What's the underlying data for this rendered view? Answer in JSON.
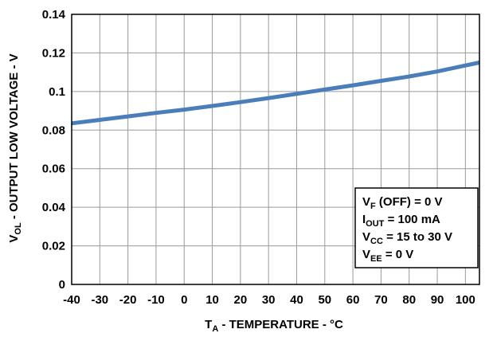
{
  "chart_data": {
    "type": "line",
    "xlabel": {
      "main": "T",
      "sub": "A",
      "rest": " - TEMPERATURE - °C"
    },
    "ylabel": {
      "main": "V",
      "sub": "OL",
      "rest": " - OUTPUT LOW VOLTAGE - V"
    },
    "xlim": [
      -40,
      105
    ],
    "ylim": [
      0,
      0.14
    ],
    "xticks": [
      -40,
      -30,
      -20,
      -10,
      0,
      10,
      20,
      30,
      40,
      50,
      60,
      70,
      80,
      90,
      100
    ],
    "xtick_labels": [
      "-40",
      "-30",
      "-20",
      "-10",
      "0",
      "10",
      "20",
      "30",
      "40",
      "50",
      "60",
      "70",
      "80",
      "90",
      "100"
    ],
    "yticks": [
      0,
      0.02,
      0.04,
      0.06,
      0.08,
      0.1,
      0.12,
      0.14
    ],
    "ytick_labels": [
      "0",
      "0.02",
      "0.04",
      "0.06",
      "0.08",
      "0.1",
      "0.12",
      "0.14"
    ],
    "grid": true,
    "line_color": "#4a7ebb",
    "series": [
      {
        "x": [
          -40,
          -30,
          -20,
          -10,
          0,
          10,
          20,
          30,
          40,
          50,
          60,
          70,
          80,
          90,
          100,
          105
        ],
        "y": [
          0.0835,
          0.0853,
          0.0871,
          0.0889,
          0.0906,
          0.0925,
          0.0945,
          0.0966,
          0.0988,
          0.101,
          0.1032,
          0.1055,
          0.1078,
          0.1104,
          0.1135,
          0.115
        ]
      }
    ],
    "annotation": [
      {
        "main": "V",
        "sub": "F",
        "rest": " (OFF) = 0 V"
      },
      {
        "main": "I",
        "sub": "OUT",
        "rest": " = 100 mA"
      },
      {
        "main": "V",
        "sub": "CC",
        "rest": " = 15 to 30 V"
      },
      {
        "main": "V",
        "sub": "EE",
        "rest": " = 0 V"
      }
    ]
  }
}
